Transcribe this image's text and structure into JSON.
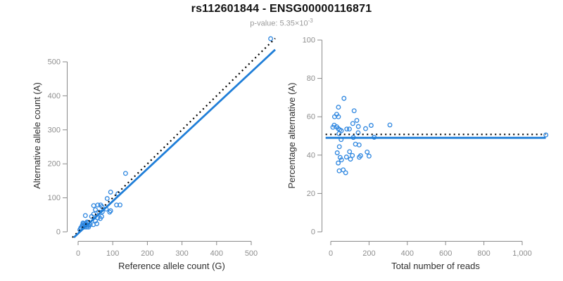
{
  "header": {
    "title": "rs112601844 - ENSG00000116871",
    "subtitle_text": "p-value: 5.35×10",
    "subtitle_exponent": "-3"
  },
  "colors": {
    "point": "#2f87e0",
    "fit_line": "#1f7ed8",
    "reference_line": "#000000",
    "axis": "#8a8a8a",
    "tick_label": "#8e8e8e",
    "axis_title": "#2e2e2e"
  },
  "chart_data": [
    {
      "name": "allele-counts-plot",
      "type": "scatter",
      "xlabel": "Reference allele count (G)",
      "ylabel": "Alternative allele count (A)",
      "xticks": [
        0,
        100,
        200,
        300,
        400,
        500
      ],
      "xtick_labels": [
        "0",
        "100",
        "200",
        "300",
        "400",
        "500"
      ],
      "yticks": [
        0,
        100,
        200,
        300,
        400,
        500
      ],
      "ytick_labels": [
        "0",
        "100",
        "200",
        "300",
        "400",
        "500"
      ],
      "xlim": [
        -30,
        570
      ],
      "ylim": [
        -17,
        583
      ],
      "grid": false,
      "legend": "none",
      "points": [
        [
          556,
          568
        ],
        [
          137,
          172
        ],
        [
          94,
          117
        ],
        [
          84,
          98
        ],
        [
          115,
          112
        ],
        [
          65,
          79
        ],
        [
          111,
          79
        ],
        [
          121,
          79
        ],
        [
          81,
          67
        ],
        [
          50,
          65
        ],
        [
          94,
          62
        ],
        [
          21,
          48
        ],
        [
          39,
          45
        ],
        [
          45,
          52
        ],
        [
          57,
          41
        ],
        [
          64,
          39
        ],
        [
          68,
          45
        ],
        [
          50,
          32
        ],
        [
          54,
          24
        ],
        [
          44,
          21
        ],
        [
          14,
          26
        ],
        [
          16,
          24
        ],
        [
          21,
          22
        ],
        [
          25,
          20
        ],
        [
          30,
          19
        ],
        [
          20,
          14
        ],
        [
          25,
          14
        ],
        [
          14,
          17
        ],
        [
          12,
          19
        ],
        [
          8,
          12
        ],
        [
          30,
          14
        ],
        [
          28,
          26
        ],
        [
          35,
          21
        ],
        [
          22,
          25
        ],
        [
          18,
          21
        ],
        [
          26,
          29
        ],
        [
          60,
          58
        ],
        [
          70,
          59
        ],
        [
          57,
          79
        ],
        [
          45,
          77
        ],
        [
          69,
          74
        ],
        [
          91,
          58
        ],
        [
          8,
          10
        ],
        [
          5,
          6
        ]
      ],
      "lines": [
        {
          "name": "identity-line",
          "kind": "ab",
          "intercept": 0,
          "slope": 1,
          "style": "dotted",
          "color": "#000000"
        },
        {
          "name": "regression-line",
          "kind": "ab",
          "intercept": -5,
          "slope": 0.95,
          "style": "solid",
          "color": "#1f7ed8"
        }
      ]
    },
    {
      "name": "percentage-alternative-plot",
      "type": "scatter",
      "xlabel": "Total number of reads",
      "ylabel": "Percentage alternative (A)",
      "xticks": [
        0,
        200,
        400,
        600,
        800,
        1000
      ],
      "xtick_labels": [
        "0",
        "200",
        "400",
        "600",
        "800",
        "1,000"
      ],
      "yticks": [
        0,
        20,
        40,
        60,
        80,
        100
      ],
      "ytick_labels": [
        "0",
        "20",
        "40",
        "60",
        "80",
        "100"
      ],
      "xlim": [
        -44,
        1140
      ],
      "ylim": [
        -3,
        103
      ],
      "grid": false,
      "legend": "none",
      "points": [
        [
          1124,
          50.5
        ],
        [
          309,
          55.7
        ],
        [
          211,
          55.5
        ],
        [
          182,
          53.8
        ],
        [
          227,
          49.3
        ],
        [
          144,
          54.9
        ],
        [
          190,
          41.6
        ],
        [
          200,
          39.5
        ],
        [
          148,
          45.3
        ],
        [
          115,
          56.5
        ],
        [
          156,
          39.7
        ],
        [
          69,
          69.6
        ],
        [
          84,
          53.6
        ],
        [
          97,
          53.6
        ],
        [
          98,
          41.8
        ],
        [
          103,
          37.9
        ],
        [
          113,
          39.8
        ],
        [
          82,
          39.0
        ],
        [
          78,
          30.8
        ],
        [
          65,
          32.3
        ],
        [
          40,
          65.0
        ],
        [
          40,
          60.0
        ],
        [
          43,
          51.2
        ],
        [
          45,
          44.4
        ],
        [
          49,
          38.8
        ],
        [
          34,
          41.2
        ],
        [
          39,
          35.9
        ],
        [
          31,
          54.8
        ],
        [
          31,
          61.3
        ],
        [
          20,
          60.0
        ],
        [
          44,
          31.8
        ],
        [
          54,
          48.1
        ],
        [
          56,
          37.5
        ],
        [
          47,
          53.2
        ],
        [
          39,
          53.8
        ],
        [
          55,
          52.7
        ],
        [
          118,
          49.2
        ],
        [
          129,
          45.7
        ],
        [
          136,
          58.1
        ],
        [
          122,
          63.1
        ],
        [
          143,
          51.7
        ],
        [
          149,
          38.9
        ],
        [
          18,
          55.6
        ],
        [
          11,
          54.5
        ]
      ],
      "lines": [
        {
          "name": "null-line",
          "kind": "h",
          "y": 50.8,
          "x1": -27,
          "x2": 1123,
          "style": "dotted",
          "color": "#000000"
        },
        {
          "name": "fit-line",
          "kind": "h",
          "y": 49.0,
          "x1": -27,
          "x2": 1123,
          "style": "solid",
          "color": "#1f7ed8"
        }
      ]
    }
  ]
}
